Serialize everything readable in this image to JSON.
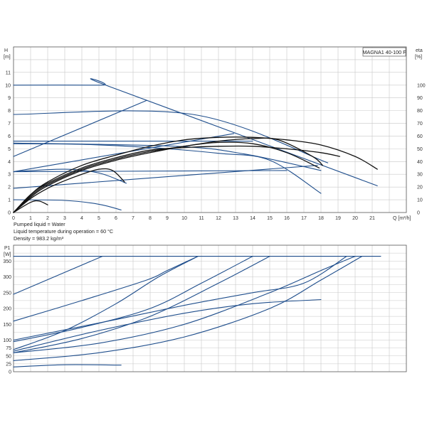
{
  "model_label": "MAGNA1 40-100 F",
  "colors": {
    "blue": "#1f4e8c",
    "black": "#111111",
    "grid": "#c8c8c8"
  },
  "notes": [
    "Pumped liquid = Water",
    "Liquid temperature during operation = 60 °C",
    "Density = 983.2 kg/m³"
  ],
  "chart_data": [
    {
      "type": "line",
      "x_axis": {
        "label": "Q [m³/h]",
        "range": [
          0,
          23
        ],
        "ticks": [
          0,
          1,
          2,
          3,
          4,
          5,
          6,
          7,
          8,
          9,
          10,
          11,
          12,
          13,
          14,
          15,
          16,
          17,
          18,
          19,
          20,
          21
        ]
      },
      "y_axis_left": {
        "label_top": "H",
        "label_unit": "[m]",
        "range": [
          0,
          13
        ],
        "ticks": [
          0,
          1,
          2,
          3,
          4,
          5,
          6,
          7,
          8,
          9,
          10,
          11
        ]
      },
      "y_axis_right": {
        "label_top": "eta",
        "label_unit": "[%]",
        "range": [
          0,
          130
        ],
        "ticks": [
          0,
          10,
          20,
          30,
          40,
          50,
          60,
          70,
          80,
          90,
          100
        ]
      },
      "grid": true,
      "series": [
        {
          "axis": "H",
          "color": "blue",
          "points": [
            [
              0,
              10
            ],
            [
              5.2,
              10
            ],
            [
              5.6,
              9.9
            ],
            [
              21.3,
              2.1
            ]
          ]
        },
        {
          "axis": "H",
          "color": "blue",
          "points": [
            [
              0,
              7.7
            ],
            [
              10.5,
              7.7
            ],
            [
              18.4,
              3.9
            ]
          ]
        },
        {
          "axis": "H",
          "color": "blue",
          "points": [
            [
              0,
              5.4
            ],
            [
              4,
              5.35
            ],
            [
              8,
              5.1
            ],
            [
              12,
              4.65
            ],
            [
              15,
              4.1
            ],
            [
              18,
              1.5
            ]
          ]
        },
        {
          "axis": "H",
          "color": "blue",
          "points": [
            [
              0,
              5.45
            ],
            [
              9.5,
              5.2
            ],
            [
              13.5,
              4.6
            ],
            [
              18,
              3.3
            ]
          ]
        },
        {
          "axis": "H",
          "color": "blue",
          "points": [
            [
              0,
              3.2
            ],
            [
              3,
              3.4
            ],
            [
              5,
              3.1
            ],
            [
              6.6,
              2.3
            ]
          ]
        },
        {
          "axis": "H",
          "color": "blue",
          "points": [
            [
              0,
              1
            ],
            [
              3,
              0.95
            ],
            [
              5,
              0.65
            ],
            [
              6.3,
              0.2
            ]
          ]
        },
        {
          "axis": "H",
          "color": "blue",
          "points": [
            [
              0,
              4.4
            ],
            [
              7.8,
              8.8
            ]
          ]
        },
        {
          "axis": "H",
          "color": "blue",
          "points": [
            [
              0,
              3.2
            ],
            [
              12.9,
              6.2
            ]
          ]
        },
        {
          "axis": "H",
          "color": "blue",
          "points": [
            [
              0,
              1.9
            ],
            [
              17.8,
              3.7
            ]
          ]
        },
        {
          "axis": "H",
          "color": "blue",
          "points": [
            [
              0,
              5.6
            ],
            [
              14,
              5.6
            ]
          ]
        },
        {
          "axis": "H",
          "color": "blue",
          "points": [
            [
              0,
              3.2
            ],
            [
              16,
              3.3
            ]
          ]
        },
        {
          "axis": "eta",
          "color": "black",
          "points": [
            [
              0,
              0
            ],
            [
              1,
              14
            ],
            [
              2,
              24
            ],
            [
              4,
              37
            ],
            [
              6,
              45
            ],
            [
              8,
              52
            ],
            [
              10,
              57
            ],
            [
              12,
              59
            ],
            [
              14,
              59
            ],
            [
              16,
              57
            ],
            [
              18,
              53
            ],
            [
              20,
              44
            ],
            [
              21.3,
              34
            ]
          ]
        },
        {
          "axis": "eta",
          "color": "black",
          "points": [
            [
              0,
              0
            ],
            [
              1,
              14
            ],
            [
              2,
              23
            ],
            [
              4,
              35
            ],
            [
              6,
              43
            ],
            [
              8,
              49
            ],
            [
              10,
              51
            ],
            [
              12,
              52
            ],
            [
              14,
              52
            ],
            [
              16,
              50
            ],
            [
              18,
              47
            ],
            [
              19.1,
              44
            ]
          ]
        },
        {
          "axis": "eta",
          "color": "black",
          "points": [
            [
              0,
              0
            ],
            [
              1,
              13
            ],
            [
              2,
              22
            ],
            [
              4,
              34
            ],
            [
              6,
              42
            ],
            [
              8,
              48
            ],
            [
              10,
              52
            ],
            [
              12,
              56
            ],
            [
              14,
              58
            ],
            [
              15.5,
              57
            ],
            [
              17.5,
              44
            ],
            [
              18.1,
              37
            ]
          ]
        },
        {
          "axis": "eta",
          "color": "black",
          "points": [
            [
              0,
              0
            ],
            [
              1,
              12
            ],
            [
              2,
              21
            ],
            [
              4,
              33
            ],
            [
              6,
              41
            ],
            [
              8,
              47
            ],
            [
              10,
              52
            ],
            [
              12,
              55
            ],
            [
              14,
              54
            ],
            [
              16,
              47
            ],
            [
              17.9,
              35
            ]
          ]
        },
        {
          "axis": "eta",
          "color": "black",
          "points": [
            [
              0,
              0
            ],
            [
              1,
              11
            ],
            [
              2,
              19
            ],
            [
              3,
              25
            ],
            [
              4,
              30
            ],
            [
              5,
              34
            ],
            [
              5.8,
              33
            ],
            [
              6.5,
              24
            ]
          ]
        },
        {
          "axis": "eta",
          "color": "black",
          "points": [
            [
              0,
              0
            ],
            [
              1,
              8
            ],
            [
              1.5,
              9
            ],
            [
              2,
              6
            ]
          ]
        }
      ]
    },
    {
      "type": "line",
      "x_axis": {
        "range": [
          0,
          23
        ]
      },
      "y_axis_left": {
        "label_top": "P1",
        "label_unit": "[W]",
        "range": [
          0,
          400
        ],
        "ticks": [
          0,
          25,
          50,
          75,
          100,
          150,
          200,
          250,
          300,
          350
        ]
      },
      "grid": true,
      "series": [
        {
          "color": "blue",
          "points": [
            [
              0,
              365
            ],
            [
              21.5,
              365
            ]
          ]
        },
        {
          "color": "blue",
          "points": [
            [
              0,
              245
            ],
            [
              5.2,
              365
            ]
          ]
        },
        {
          "color": "blue",
          "points": [
            [
              0,
              160
            ],
            [
              4,
              225
            ],
            [
              7.8,
              290
            ],
            [
              9,
              320
            ],
            [
              10.8,
              365
            ]
          ]
        },
        {
          "color": "blue",
          "points": [
            [
              0,
              70
            ],
            [
              3,
              130
            ],
            [
              6,
              215
            ],
            [
              8.5,
              300
            ],
            [
              10.8,
              365
            ]
          ]
        },
        {
          "color": "blue",
          "points": [
            [
              0,
              95
            ],
            [
              4,
              140
            ],
            [
              8,
              200
            ],
            [
              11,
              280
            ],
            [
              14,
              365
            ]
          ]
        },
        {
          "color": "blue",
          "points": [
            [
              0,
              60
            ],
            [
              4,
              105
            ],
            [
              8,
              175
            ],
            [
              12,
              280
            ],
            [
              15,
              365
            ]
          ]
        },
        {
          "color": "blue",
          "points": [
            [
              0,
              100
            ],
            [
              6,
              165
            ],
            [
              10,
              210
            ],
            [
              14,
              250
            ],
            [
              17,
              280
            ],
            [
              19.5,
              365
            ]
          ]
        },
        {
          "color": "blue",
          "points": [
            [
              0,
              60
            ],
            [
              5,
              90
            ],
            [
              10,
              150
            ],
            [
              15,
              250
            ],
            [
              18,
              320
            ],
            [
              20,
              365
            ]
          ]
        },
        {
          "color": "blue",
          "points": [
            [
              0,
              35
            ],
            [
              5,
              60
            ],
            [
              10,
              110
            ],
            [
              15,
              200
            ],
            [
              18,
              290
            ],
            [
              20.4,
              365
            ]
          ]
        },
        {
          "color": "blue",
          "points": [
            [
              0,
              65
            ],
            [
              5,
              130
            ],
            [
              10,
              185
            ],
            [
              14,
              215
            ],
            [
              18,
              228
            ]
          ]
        },
        {
          "color": "blue",
          "points": [
            [
              0,
              15
            ],
            [
              3,
              22
            ],
            [
              6.3,
              21
            ]
          ]
        }
      ]
    }
  ]
}
